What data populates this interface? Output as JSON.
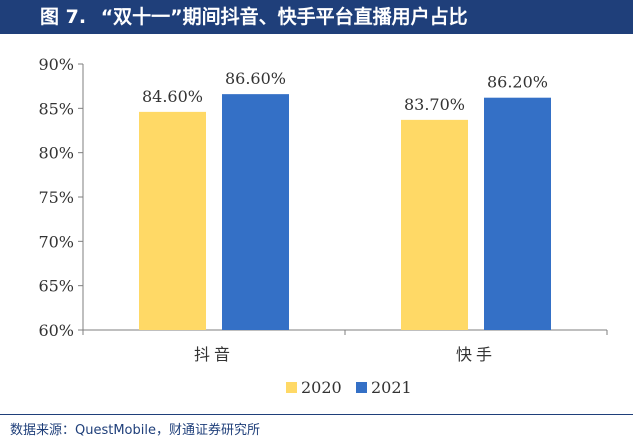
{
  "header": {
    "figure_number": "图 7.",
    "title": "“双十一”期间抖音、快手平台直播用户占比"
  },
  "footer": {
    "source": "数据来源：QuestMobile，财通证券研究所"
  },
  "colors": {
    "header_bg": "#1f3f7a",
    "series_2020": "#ffd966",
    "series_2021": "#3470c6"
  },
  "chart_data": {
    "type": "bar",
    "title": "",
    "xlabel": "",
    "ylabel": "",
    "categories": [
      "抖音",
      "快手"
    ],
    "series": [
      {
        "name": "2020",
        "values": [
          84.6,
          83.7
        ],
        "labels": [
          "84.60%",
          "83.70%"
        ]
      },
      {
        "name": "2021",
        "values": [
          86.6,
          86.2
        ],
        "labels": [
          "86.60%",
          "86.20%"
        ]
      }
    ],
    "ylim": [
      60,
      90
    ],
    "yticks": [
      60,
      65,
      70,
      75,
      80,
      85,
      90
    ],
    "ytick_labels": [
      "60%",
      "65%",
      "70%",
      "75%",
      "80%",
      "85%",
      "90%"
    ],
    "legend": {
      "position": "bottom",
      "entries": [
        "2020",
        "2021"
      ]
    },
    "grid": false
  }
}
